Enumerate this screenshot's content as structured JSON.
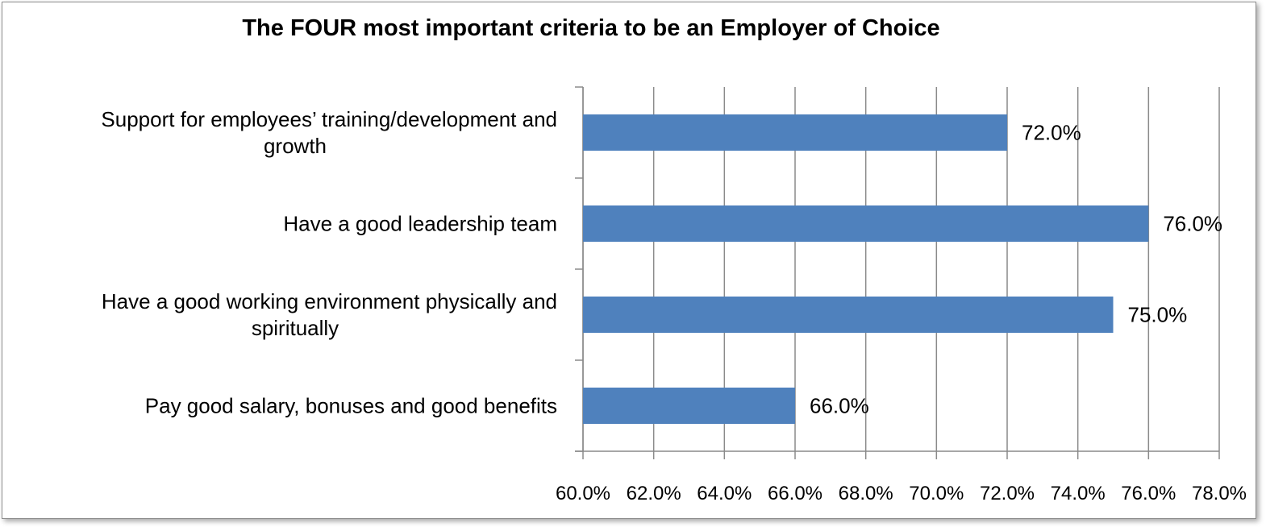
{
  "chart_data": {
    "type": "bar",
    "orientation": "horizontal",
    "title": "The FOUR most important criteria to be an Employer of Choice",
    "categories": [
      [
        "Support for employees’ training/development and",
        "growth"
      ],
      [
        "Have a good leadership team"
      ],
      [
        "Have a good working environment physically and",
        "spiritually"
      ],
      [
        "Pay good salary, bonuses and good benefits"
      ]
    ],
    "values": [
      72.0,
      76.0,
      75.0,
      66.0
    ],
    "data_labels": [
      "72.0%",
      "76.0%",
      "75.0%",
      "66.0%"
    ],
    "xlim": [
      60,
      78
    ],
    "xticks": [
      60,
      62,
      64,
      66,
      68,
      70,
      72,
      74,
      76,
      78
    ],
    "xtick_labels": [
      "60.0%",
      "62.0%",
      "64.0%",
      "66.0%",
      "68.0%",
      "70.0%",
      "72.0%",
      "74.0%",
      "76.0%",
      "78.0%"
    ],
    "grid": true,
    "legend": "none",
    "bar_color": "#4F81BD"
  }
}
